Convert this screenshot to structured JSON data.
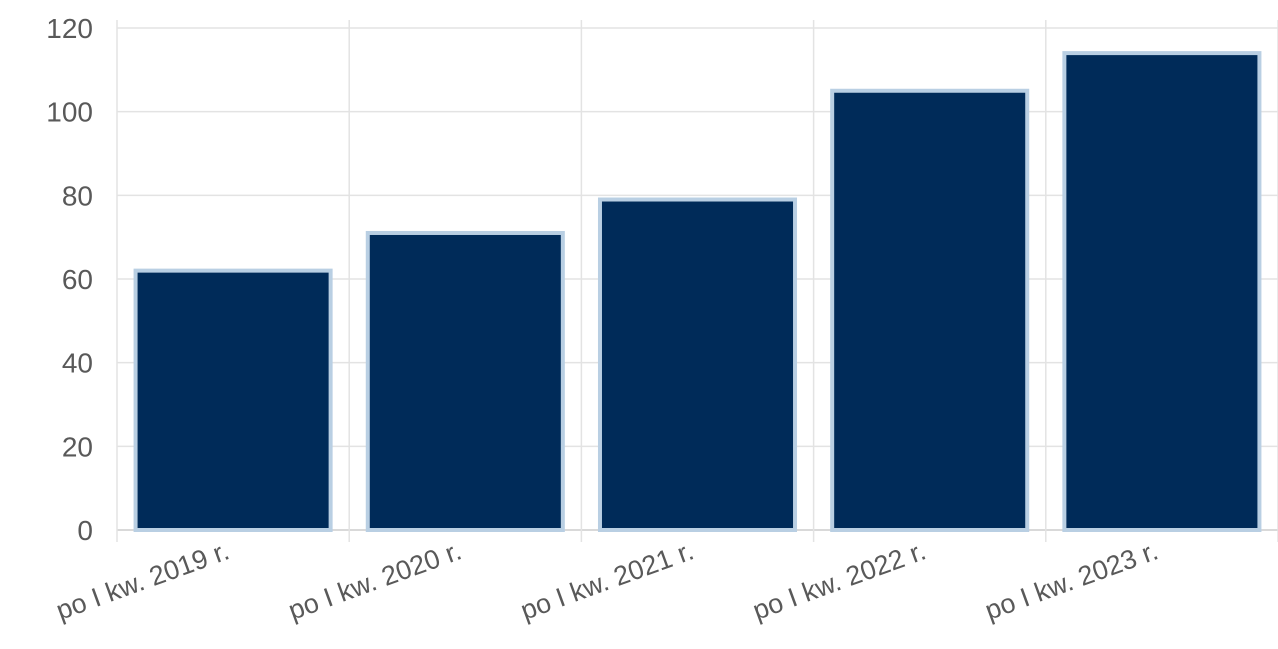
{
  "chart_data": {
    "type": "bar",
    "categories": [
      "po I kw. 2019 r.",
      "po I kw. 2020 r.",
      "po I kw. 2021 r.",
      "po I kw. 2022 r.",
      "po I kw. 2023 r."
    ],
    "values": [
      62,
      71,
      79,
      105,
      114
    ],
    "ylim": [
      0,
      120
    ],
    "yticks": [
      0,
      20,
      40,
      60,
      80,
      100,
      120
    ],
    "grid": true,
    "legend": "none",
    "bar_color": "#002b59",
    "bar_outline_color": "#b9cfe3"
  }
}
